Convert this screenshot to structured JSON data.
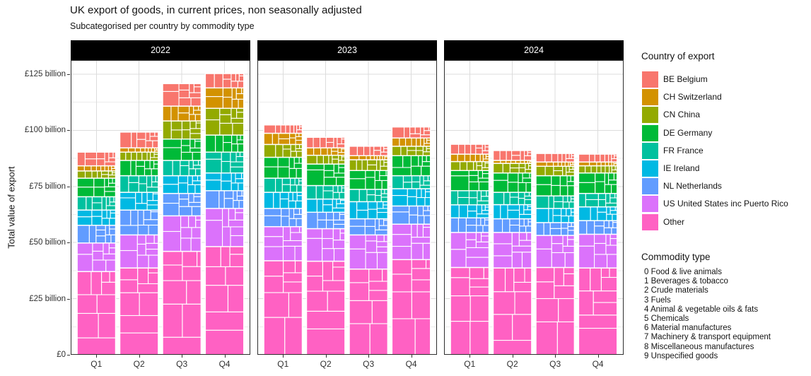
{
  "chart_data": {
    "type": "mosaic-stacked-bar",
    "title": "UK export of goods, in current prices, non seasonally adjusted",
    "subtitle": "Subcategorised per country by commodity type",
    "ylabel": "Total value of export",
    "unit": "£ billion",
    "ylim": [
      0,
      131.2
    ],
    "grid": true,
    "legend_position": "right",
    "y_ticks": [
      {
        "value": 0,
        "label": "£0"
      },
      {
        "value": 25,
        "label": "£25 billion"
      },
      {
        "value": 50,
        "label": "£50 billion"
      },
      {
        "value": 75,
        "label": "£75 billion"
      },
      {
        "value": 100,
        "label": "£100 billion"
      },
      {
        "value": 125,
        "label": "£125 billion"
      }
    ],
    "quarters": [
      "Q1",
      "Q2",
      "Q3",
      "Q4"
    ],
    "countries": [
      {
        "code": "BE",
        "label": "BE Belgium",
        "color": "#F8766D"
      },
      {
        "code": "CH",
        "label": "CH Switzerland",
        "color": "#D39200"
      },
      {
        "code": "CN",
        "label": "CN China",
        "color": "#93AA00"
      },
      {
        "code": "DE",
        "label": "DE Germany",
        "color": "#00BA38"
      },
      {
        "code": "FR",
        "label": "FR France",
        "color": "#00C19F"
      },
      {
        "code": "IE",
        "label": "IE Ireland",
        "color": "#00B9E3"
      },
      {
        "code": "NL",
        "label": "NL Netherlands",
        "color": "#619CFF"
      },
      {
        "code": "US",
        "label": "US United States inc Puerto Rico",
        "color": "#DB72FB"
      },
      {
        "code": "Other",
        "label": "Other",
        "color": "#FF61C3"
      }
    ],
    "facets": [
      {
        "year": "2022",
        "totals": [
          90.3,
          99.2,
          120.8,
          125.3
        ],
        "series": [
          {
            "country": "BE",
            "values": [
              6.1,
              7.0,
              10.0,
              6.4
            ]
          },
          {
            "country": "CH",
            "values": [
              2.3,
              1.9,
              6.6,
              9.1
            ]
          },
          {
            "country": "CN",
            "values": [
              3.2,
              3.7,
              8.1,
              11.9
            ]
          },
          {
            "country": "DE",
            "values": [
              8.3,
              6.8,
              9.5,
              7.6
            ]
          },
          {
            "country": "FR",
            "values": [
              5.9,
              7.4,
              6.8,
              9.3
            ]
          },
          {
            "country": "IE",
            "values": [
              6.8,
              7.9,
              7.9,
              7.9
            ]
          },
          {
            "country": "NL",
            "values": [
              7.9,
              11.1,
              10.0,
              7.9
            ]
          },
          {
            "country": "US",
            "values": [
              12.7,
              14.7,
              15.8,
              17.0
            ]
          },
          {
            "country": "Other",
            "values": [
              37.1,
              38.7,
              46.1,
              48.2
            ]
          }
        ]
      },
      {
        "year": "2023",
        "totals": [
          102.4,
          96.9,
          92.9,
          101.5
        ],
        "series": [
          {
            "country": "BE",
            "values": [
              3.7,
              4.7,
              4.2,
              4.9
            ]
          },
          {
            "country": "CH",
            "values": [
              5.0,
              3.3,
              1.8,
              3.7
            ]
          },
          {
            "country": "CN",
            "values": [
              5.7,
              3.9,
              4.8,
              4.2
            ]
          },
          {
            "country": "DE",
            "values": [
              9.3,
              9.6,
              8.4,
              8.9
            ]
          },
          {
            "country": "FR",
            "values": [
              6.3,
              6.0,
              5.5,
              5.8
            ]
          },
          {
            "country": "IE",
            "values": [
              7.2,
              5.9,
              7.6,
              7.7
            ]
          },
          {
            "country": "NL",
            "values": [
              8.1,
              7.3,
              7.2,
              8.1
            ]
          },
          {
            "country": "US",
            "values": [
              15.2,
              14.5,
              15.2,
              15.8
            ]
          },
          {
            "country": "Other",
            "values": [
              41.9,
              41.7,
              38.2,
              42.4
            ]
          }
        ]
      },
      {
        "year": "2024",
        "totals": [
          93.8,
          91.0,
          89.7,
          89.4
        ],
        "series": [
          {
            "country": "BE",
            "values": [
              4.4,
              4.4,
              3.8,
              3.5
            ]
          },
          {
            "country": "CH",
            "values": [
              3.3,
              1.3,
              1.9,
              1.7
            ]
          },
          {
            "country": "CN",
            "values": [
              4.0,
              4.3,
              4.2,
              3.2
            ]
          },
          {
            "country": "DE",
            "values": [
              9.0,
              8.6,
              9.0,
              9.1
            ]
          },
          {
            "country": "FR",
            "values": [
              6.3,
              5.5,
              5.6,
              6.0
            ]
          },
          {
            "country": "IE",
            "values": [
              5.8,
              6.3,
              6.3,
              6.1
            ]
          },
          {
            "country": "NL",
            "values": [
              6.5,
              6.1,
              5.7,
              6.1
            ]
          },
          {
            "country": "US",
            "values": [
              15.6,
              15.8,
              14.3,
              15.0
            ]
          },
          {
            "country": "Other",
            "values": [
              38.9,
              38.7,
              38.9,
              38.7
            ]
          }
        ]
      }
    ]
  },
  "legend_country": {
    "title": "Country of export"
  },
  "legend_commodity": {
    "title": "Commodity type",
    "items": [
      "0 Food & live animals",
      "1 Beverages & tobacco",
      "2 Crude materials",
      "3 Fuels",
      "4 Animal & vegetable oils & fats",
      "5 Chemicals",
      "6 Material manufactures",
      "7 Machinery & transport equipment",
      "8 Miscellaneous manufactures",
      "9 Unspecified goods"
    ]
  },
  "colors": {
    "strip_bg": "#000000",
    "strip_text": "#ffffff",
    "panel_border": "#2e2e2e",
    "grid_major": "#DCDCDC",
    "grid_minor": "#ECECEC",
    "cell_border": "#ffffff"
  }
}
